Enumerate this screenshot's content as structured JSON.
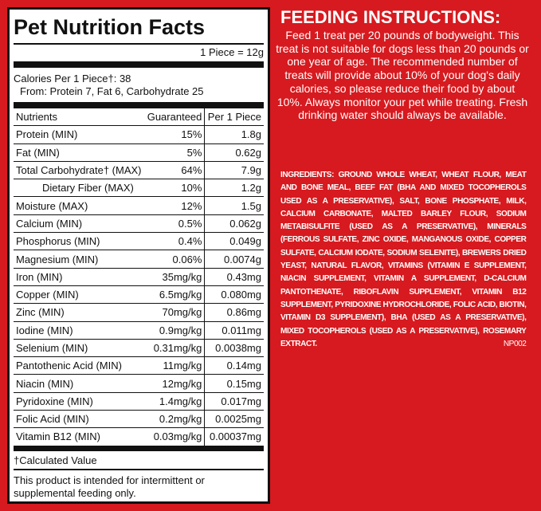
{
  "nutrition": {
    "title": "Pet Nutrition Facts",
    "serving": "1 Piece = 12g",
    "calories": "Calories Per 1 Piece†: 38",
    "calories_from": "From: Protein 7, Fat 6, Carbohydrate 25",
    "columns": [
      "Nutrients",
      "Guaranteed",
      "Per 1 Piece"
    ],
    "rows": [
      [
        "Protein (MIN)",
        "15%",
        "1.8g"
      ],
      [
        "Fat (MIN)",
        "5%",
        "0.62g"
      ],
      [
        "Total Carbohydrate† (MAX)",
        "64%",
        "7.9g"
      ],
      [
        "Dietary Fiber (MAX)",
        "10%",
        "1.2g"
      ],
      [
        "Moisture (MAX)",
        "12%",
        "1.5g"
      ],
      [
        "Calcium (MIN)",
        "0.5%",
        "0.062g"
      ],
      [
        "Phosphorus (MIN)",
        "0.4%",
        "0.049g"
      ],
      [
        "Magnesium (MIN)",
        "0.06%",
        "0.0074g"
      ],
      [
        "Iron (MIN)",
        "35mg/kg",
        "0.43mg"
      ],
      [
        "Copper (MIN)",
        "6.5mg/kg",
        "0.080mg"
      ],
      [
        "Zinc (MIN)",
        "70mg/kg",
        "0.86mg"
      ],
      [
        "Iodine (MIN)",
        "0.9mg/kg",
        "0.011mg"
      ],
      [
        "Selenium (MIN)",
        "0.31mg/kg",
        "0.0038mg"
      ],
      [
        "Pantothenic Acid (MIN)",
        "11mg/kg",
        "0.14mg"
      ],
      [
        "Niacin (MIN)",
        "12mg/kg",
        "0.15mg"
      ],
      [
        "Pyridoxine (MIN)",
        "1.4mg/kg",
        "0.017mg"
      ],
      [
        "Folic Acid (MIN)",
        "0.2mg/kg",
        "0.0025mg"
      ],
      [
        "Vitamin B12 (MIN)",
        "0.03mg/kg",
        "0.00037mg"
      ]
    ],
    "footnote": "†Calculated Value",
    "note": "This product is intended for intermittent or supplemental feeding only."
  },
  "feeding": {
    "title": "FEEDING INSTRUCTIONS:",
    "text": "Feed 1 treat per 20 pounds of bodyweight. This treat is not suitable for dogs less than 20 pounds or one year of age. The recommended number of treats will provide about 10% of your dog's daily calories, so please reduce their food by about 10%. Always monitor your pet while treating. Fresh drinking water should always be available."
  },
  "ingredients": {
    "label": "INGREDIENTS:",
    "text": "GROUND WHOLE WHEAT, WHEAT FLOUR, MEAT AND BONE MEAL, BEEF FAT (BHA AND MIXED TOCOPHEROLS USED AS A PRESERVATIVE), SALT, BONE PHOSPHATE, MILK, CALCIUM CARBONATE, MALTED BARLEY FLOUR, SODIUM METABISULFITE (USED AS A PRESERVATIVE), MINERALS (FERROUS SULFATE, ZINC OXIDE, MANGANOUS OXIDE, COPPER SULFATE, CALCIUM IODATE, SODIUM SELENITE), BREWERS DRIED YEAST, NATURAL FLAVOR, VITAMINS (VITAMIN E SUPPLEMENT, NIACIN SUPPLEMENT, VITAMIN A SUPPLEMENT, D-CALCIUM PANTOTHENATE, RIBOFLAVIN SUPPLEMENT, VITAMIN B12 SUPPLEMENT, PYRIDOXINE HYDROCHLORIDE, FOLIC ACID, BIOTIN, VITAMIN D3 SUPPLEMENT), BHA (USED AS A PRESERVATIVE), MIXED TOCOPHEROLS (USED AS A PRESERVATIVE), ROSEMARY EXTRACT.",
    "code": "NP002"
  }
}
